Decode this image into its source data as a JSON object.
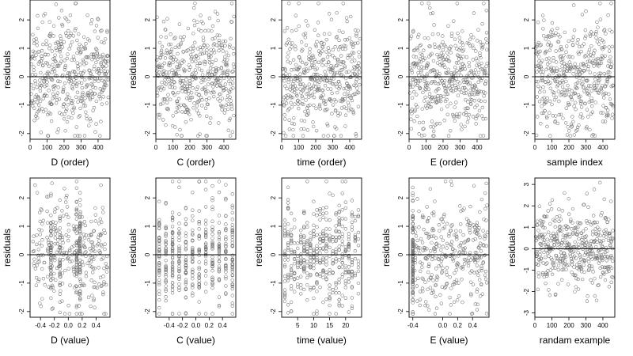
{
  "chart_data": [
    {
      "type": "scatter",
      "title": "",
      "xlabel": "D (order)",
      "ylabel": "residuals",
      "xlim": [
        0,
        470
      ],
      "ylim": [
        -2.2,
        2.7
      ],
      "xticks": [
        {
          "v": 0,
          "label": "0"
        },
        {
          "v": 100,
          "label": "100"
        },
        {
          "v": 200,
          "label": "200"
        },
        {
          "v": 300,
          "label": "300"
        },
        {
          "v": 400,
          "label": "400"
        }
      ],
      "yticks": [
        {
          "v": -2,
          "label": "-2"
        },
        {
          "v": -1,
          "label": "-1"
        },
        {
          "v": 0,
          "label": "0"
        },
        {
          "v": 1,
          "label": "1"
        },
        {
          "v": 2,
          "label": "2"
        }
      ],
      "reference_line": 0,
      "pattern": {
        "kind": "order",
        "seed": 11,
        "n": 460
      }
    },
    {
      "type": "scatter",
      "title": "",
      "xlabel": "C (order)",
      "ylabel": "residuals",
      "xlim": [
        0,
        470
      ],
      "ylim": [
        -2.2,
        2.7
      ],
      "xticks": [
        {
          "v": 0,
          "label": "0"
        },
        {
          "v": 100,
          "label": "100"
        },
        {
          "v": 200,
          "label": "200"
        },
        {
          "v": 300,
          "label": "300"
        },
        {
          "v": 400,
          "label": "400"
        }
      ],
      "yticks": [
        {
          "v": -2,
          "label": "-2"
        },
        {
          "v": -1,
          "label": "-1"
        },
        {
          "v": 0,
          "label": "0"
        },
        {
          "v": 1,
          "label": "1"
        },
        {
          "v": 2,
          "label": "2"
        }
      ],
      "reference_line": 0,
      "pattern": {
        "kind": "order",
        "seed": 23,
        "n": 460
      }
    },
    {
      "type": "scatter",
      "title": "",
      "xlabel": "time (order)",
      "ylabel": "residuals",
      "xlim": [
        0,
        470
      ],
      "ylim": [
        -2.2,
        2.7
      ],
      "xticks": [
        {
          "v": 0,
          "label": "0"
        },
        {
          "v": 100,
          "label": "100"
        },
        {
          "v": 200,
          "label": "200"
        },
        {
          "v": 300,
          "label": "300"
        },
        {
          "v": 400,
          "label": "400"
        }
      ],
      "yticks": [
        {
          "v": -2,
          "label": "-2"
        },
        {
          "v": -1,
          "label": "-1"
        },
        {
          "v": 0,
          "label": "0"
        },
        {
          "v": 1,
          "label": "1"
        },
        {
          "v": 2,
          "label": "2"
        }
      ],
      "reference_line": 0,
      "pattern": {
        "kind": "order",
        "seed": 37,
        "n": 460
      }
    },
    {
      "type": "scatter",
      "title": "",
      "xlabel": "E (order)",
      "ylabel": "residuals",
      "xlim": [
        0,
        470
      ],
      "ylim": [
        -2.2,
        2.7
      ],
      "xticks": [
        {
          "v": 0,
          "label": "0"
        },
        {
          "v": 100,
          "label": "100"
        },
        {
          "v": 200,
          "label": "200"
        },
        {
          "v": 300,
          "label": "300"
        },
        {
          "v": 400,
          "label": "400"
        }
      ],
      "yticks": [
        {
          "v": -2,
          "label": "-2"
        },
        {
          "v": -1,
          "label": "-1"
        },
        {
          "v": 0,
          "label": "0"
        },
        {
          "v": 1,
          "label": "1"
        },
        {
          "v": 2,
          "label": "2"
        }
      ],
      "reference_line": 0,
      "pattern": {
        "kind": "order",
        "seed": 41,
        "n": 460
      }
    },
    {
      "type": "scatter",
      "title": "",
      "xlabel": "sample index",
      "ylabel": "residuals",
      "xlim": [
        0,
        470
      ],
      "ylim": [
        -2.2,
        2.7
      ],
      "xticks": [
        {
          "v": 0,
          "label": "0"
        },
        {
          "v": 100,
          "label": "100"
        },
        {
          "v": 200,
          "label": "200"
        },
        {
          "v": 300,
          "label": "300"
        },
        {
          "v": 400,
          "label": "400"
        }
      ],
      "yticks": [
        {
          "v": -2,
          "label": "-2"
        },
        {
          "v": -1,
          "label": "-1"
        },
        {
          "v": 0,
          "label": "0"
        },
        {
          "v": 1,
          "label": "1"
        },
        {
          "v": 2,
          "label": "2"
        }
      ],
      "reference_line": 0,
      "pattern": {
        "kind": "order",
        "seed": 53,
        "n": 460
      }
    },
    {
      "type": "scatter",
      "title": "",
      "xlabel": "D (value)",
      "ylabel": "residuals",
      "xlim": [
        -0.55,
        0.6
      ],
      "ylim": [
        -2.2,
        2.7
      ],
      "xticks": [
        {
          "v": -0.4,
          "label": "-0.4"
        },
        {
          "v": -0.2,
          "label": "-0.2"
        },
        {
          "v": 0.0,
          "label": "0.0"
        },
        {
          "v": 0.2,
          "label": "0.2"
        },
        {
          "v": 0.4,
          "label": "0.4"
        }
      ],
      "yticks": [
        {
          "v": -2,
          "label": "-2"
        },
        {
          "v": -1,
          "label": "-1"
        },
        {
          "v": 0,
          "label": "0"
        },
        {
          "v": 1,
          "label": "1"
        },
        {
          "v": 2,
          "label": "2"
        }
      ],
      "reference_line": 0,
      "pattern": {
        "kind": "value",
        "seed": 61,
        "n": 460,
        "range": [
          -0.52,
          0.57
        ],
        "clusters": [
          -0.25,
          -0.12,
          0.12,
          0.17
        ],
        "cluster_share": 0.4
      }
    },
    {
      "type": "scatter",
      "title": "",
      "xlabel": "C (value)",
      "ylabel": "residuals",
      "xlim": [
        -0.6,
        0.6
      ],
      "ylim": [
        -2.2,
        2.7
      ],
      "xticks": [
        {
          "v": -0.4,
          "label": "-0.4"
        },
        {
          "v": -0.2,
          "label": "-0.2"
        },
        {
          "v": 0.0,
          "label": "0.0"
        },
        {
          "v": 0.2,
          "label": "0.2"
        },
        {
          "v": 0.4,
          "label": "0.4"
        }
      ],
      "yticks": [
        {
          "v": -2,
          "label": "-2"
        },
        {
          "v": -1,
          "label": "-1"
        },
        {
          "v": 0,
          "label": "0"
        },
        {
          "v": 1,
          "label": "1"
        },
        {
          "v": 2,
          "label": "2"
        }
      ],
      "reference_line": 0,
      "pattern": {
        "kind": "discrete",
        "seed": 67,
        "n": 460,
        "levels": [
          -0.55,
          -0.45,
          -0.35,
          -0.25,
          -0.15,
          -0.05,
          0.05,
          0.15,
          0.25,
          0.35,
          0.45,
          0.55
        ]
      }
    },
    {
      "type": "scatter",
      "title": "",
      "xlabel": "time (value)",
      "ylabel": "residuals",
      "xlim": [
        0,
        25
      ],
      "ylim": [
        -2.2,
        2.7
      ],
      "xticks": [
        {
          "v": 5,
          "label": "5"
        },
        {
          "v": 10,
          "label": "10"
        },
        {
          "v": 15,
          "label": "15"
        },
        {
          "v": 20,
          "label": "20"
        }
      ],
      "yticks": [
        {
          "v": -2,
          "label": "-2"
        },
        {
          "v": -1,
          "label": "-1"
        },
        {
          "v": 0,
          "label": "0"
        },
        {
          "v": 1,
          "label": "1"
        },
        {
          "v": 2,
          "label": "2"
        }
      ],
      "reference_line": 0,
      "pattern": {
        "kind": "discrete",
        "seed": 71,
        "n": 460,
        "levels": [
          1,
          2,
          3,
          4,
          5,
          6,
          7,
          8,
          9,
          10,
          11,
          12,
          13,
          14,
          15,
          16,
          17,
          18,
          19,
          20,
          21,
          22,
          23,
          24
        ]
      }
    },
    {
      "type": "scatter",
      "title": "",
      "xlabel": "E (value)",
      "ylabel": "residuals",
      "xlim": [
        -0.45,
        0.62
      ],
      "ylim": [
        -2.2,
        2.7
      ],
      "xticks": [
        {
          "v": -0.4,
          "label": "-0.4"
        },
        {
          "v": 0.0,
          "label": "0.0"
        },
        {
          "v": 0.2,
          "label": "0.2"
        },
        {
          "v": 0.4,
          "label": "0.4"
        }
      ],
      "yticks": [
        {
          "v": -2,
          "label": "-2"
        },
        {
          "v": -1,
          "label": "-1"
        },
        {
          "v": 0,
          "label": "0"
        },
        {
          "v": 1,
          "label": "1"
        },
        {
          "v": 2,
          "label": "2"
        }
      ],
      "reference_line": 0,
      "pattern": {
        "kind": "value",
        "seed": 79,
        "n": 460,
        "range": [
          -0.38,
          0.6
        ],
        "clusters": [
          -0.4
        ],
        "cluster_share": 0.25
      }
    },
    {
      "type": "scatter",
      "title": "",
      "xlabel": "randam example",
      "ylabel": "residuals",
      "xlim": [
        0,
        470
      ],
      "ylim": [
        -3.2,
        3.3
      ],
      "xticks": [
        {
          "v": 0,
          "label": "0"
        },
        {
          "v": 100,
          "label": "100"
        },
        {
          "v": 200,
          "label": "200"
        },
        {
          "v": 300,
          "label": "300"
        },
        {
          "v": 400,
          "label": "400"
        }
      ],
      "yticks": [
        {
          "v": -3,
          "label": "-3"
        },
        {
          "v": -2,
          "label": "-2"
        },
        {
          "v": -1,
          "label": "-1"
        },
        {
          "v": 0,
          "label": "0"
        },
        {
          "v": 1,
          "label": "1"
        },
        {
          "v": 2,
          "label": "2"
        },
        {
          "v": 3,
          "label": "3"
        }
      ],
      "reference_line": 0,
      "pattern": {
        "kind": "order",
        "seed": 97,
        "n": 460
      }
    }
  ]
}
